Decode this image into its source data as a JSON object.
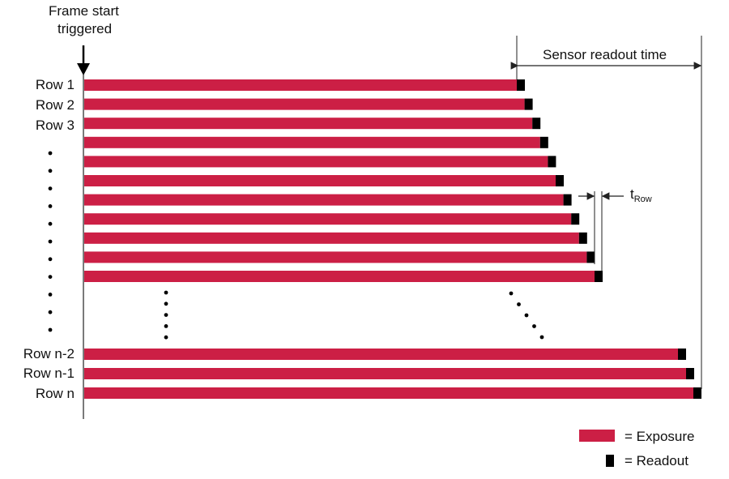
{
  "trigger": {
    "line1": "Frame start",
    "line2": "triggered"
  },
  "sensor_readout": {
    "label": "Sensor readout time"
  },
  "t_row": {
    "main": "t",
    "sub": "Row"
  },
  "rows": {
    "labeled_top": [
      "Row 1",
      "Row 2",
      "Row 3"
    ],
    "unlabeled_top_count": 8,
    "labeled_bottom": [
      "Row n-2",
      "Row n-1",
      "Row n"
    ]
  },
  "legend": {
    "exposure": "= Exposure",
    "readout": "= Readout"
  },
  "colors": {
    "exposure": "#cc1f45",
    "readout": "#000000",
    "line": "#222222"
  }
}
